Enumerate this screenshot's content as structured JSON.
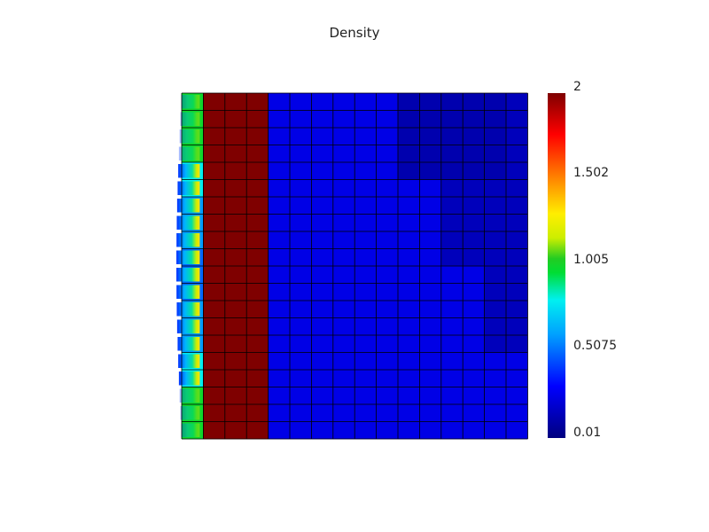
{
  "chart_data": {
    "type": "heatmap",
    "title": "Density",
    "grid": true,
    "colorbar": {
      "min": 0.01,
      "max": 2,
      "tick_labels": [
        "2",
        "1.502",
        "1.005",
        "0.5075",
        "0.01"
      ],
      "tick_values": [
        2,
        1.502,
        1.005,
        0.5075,
        0.01
      ]
    },
    "n_cols": 16,
    "n_rows": 20,
    "values": [
      [
        1.0,
        2.0,
        2.0,
        2.0,
        0.25,
        0.25,
        0.25,
        0.25,
        0.25,
        0.25,
        0.12,
        0.12,
        0.12,
        0.12,
        0.12,
        0.15
      ],
      [
        1.0,
        2.0,
        2.0,
        2.0,
        0.25,
        0.25,
        0.25,
        0.25,
        0.25,
        0.25,
        0.12,
        0.12,
        0.12,
        0.12,
        0.12,
        0.15
      ],
      [
        1.0,
        2.0,
        2.0,
        2.0,
        0.25,
        0.25,
        0.25,
        0.25,
        0.25,
        0.25,
        0.12,
        0.12,
        0.12,
        0.12,
        0.12,
        0.15
      ],
      [
        1.0,
        2.0,
        2.0,
        2.0,
        0.25,
        0.25,
        0.25,
        0.25,
        0.25,
        0.25,
        0.12,
        0.12,
        0.12,
        0.12,
        0.12,
        0.15
      ],
      [
        0.8,
        2.0,
        2.0,
        2.0,
        0.25,
        0.25,
        0.25,
        0.25,
        0.25,
        0.25,
        0.12,
        0.12,
        0.12,
        0.12,
        0.12,
        0.15
      ],
      [
        0.8,
        2.0,
        2.0,
        2.0,
        0.25,
        0.25,
        0.25,
        0.25,
        0.25,
        0.25,
        0.25,
        0.25,
        0.15,
        0.15,
        0.15,
        0.15
      ],
      [
        0.6,
        2.0,
        2.0,
        2.0,
        0.25,
        0.25,
        0.25,
        0.25,
        0.25,
        0.25,
        0.25,
        0.25,
        0.15,
        0.15,
        0.15,
        0.15
      ],
      [
        0.6,
        2.0,
        2.0,
        2.0,
        0.25,
        0.25,
        0.25,
        0.25,
        0.25,
        0.25,
        0.25,
        0.25,
        0.15,
        0.15,
        0.15,
        0.15
      ],
      [
        0.6,
        2.0,
        2.0,
        2.0,
        0.25,
        0.25,
        0.25,
        0.25,
        0.25,
        0.25,
        0.25,
        0.25,
        0.15,
        0.15,
        0.15,
        0.15
      ],
      [
        0.5,
        2.0,
        2.0,
        2.0,
        0.25,
        0.25,
        0.25,
        0.25,
        0.25,
        0.25,
        0.25,
        0.25,
        0.15,
        0.15,
        0.15,
        0.15
      ],
      [
        0.5,
        2.0,
        2.0,
        2.0,
        0.25,
        0.25,
        0.25,
        0.25,
        0.25,
        0.25,
        0.25,
        0.25,
        0.25,
        0.25,
        0.15,
        0.15
      ],
      [
        0.5,
        2.0,
        2.0,
        2.0,
        0.25,
        0.25,
        0.25,
        0.25,
        0.25,
        0.25,
        0.25,
        0.25,
        0.25,
        0.25,
        0.15,
        0.15
      ],
      [
        0.6,
        2.0,
        2.0,
        2.0,
        0.25,
        0.25,
        0.25,
        0.25,
        0.25,
        0.25,
        0.25,
        0.25,
        0.25,
        0.25,
        0.15,
        0.15
      ],
      [
        0.6,
        2.0,
        2.0,
        2.0,
        0.25,
        0.25,
        0.25,
        0.25,
        0.25,
        0.25,
        0.25,
        0.25,
        0.25,
        0.25,
        0.15,
        0.15
      ],
      [
        0.6,
        2.0,
        2.0,
        2.0,
        0.25,
        0.25,
        0.25,
        0.25,
        0.25,
        0.25,
        0.25,
        0.25,
        0.25,
        0.25,
        0.15,
        0.15
      ],
      [
        0.8,
        2.0,
        2.0,
        2.0,
        0.25,
        0.25,
        0.25,
        0.25,
        0.25,
        0.25,
        0.25,
        0.25,
        0.25,
        0.25,
        0.25,
        0.25
      ],
      [
        0.8,
        2.0,
        2.0,
        2.0,
        0.25,
        0.25,
        0.25,
        0.25,
        0.25,
        0.25,
        0.25,
        0.25,
        0.25,
        0.25,
        0.25,
        0.25
      ],
      [
        1.0,
        2.0,
        2.0,
        2.0,
        0.25,
        0.25,
        0.25,
        0.25,
        0.25,
        0.25,
        0.25,
        0.25,
        0.25,
        0.25,
        0.25,
        0.25
      ],
      [
        1.0,
        2.0,
        2.0,
        2.0,
        0.25,
        0.25,
        0.25,
        0.25,
        0.25,
        0.25,
        0.25,
        0.25,
        0.25,
        0.25,
        0.25,
        0.25
      ],
      [
        1.0,
        2.0,
        2.0,
        2.0,
        0.25,
        0.25,
        0.25,
        0.25,
        0.25,
        0.25,
        0.25,
        0.25,
        0.25,
        0.25,
        0.25,
        0.25
      ]
    ]
  }
}
